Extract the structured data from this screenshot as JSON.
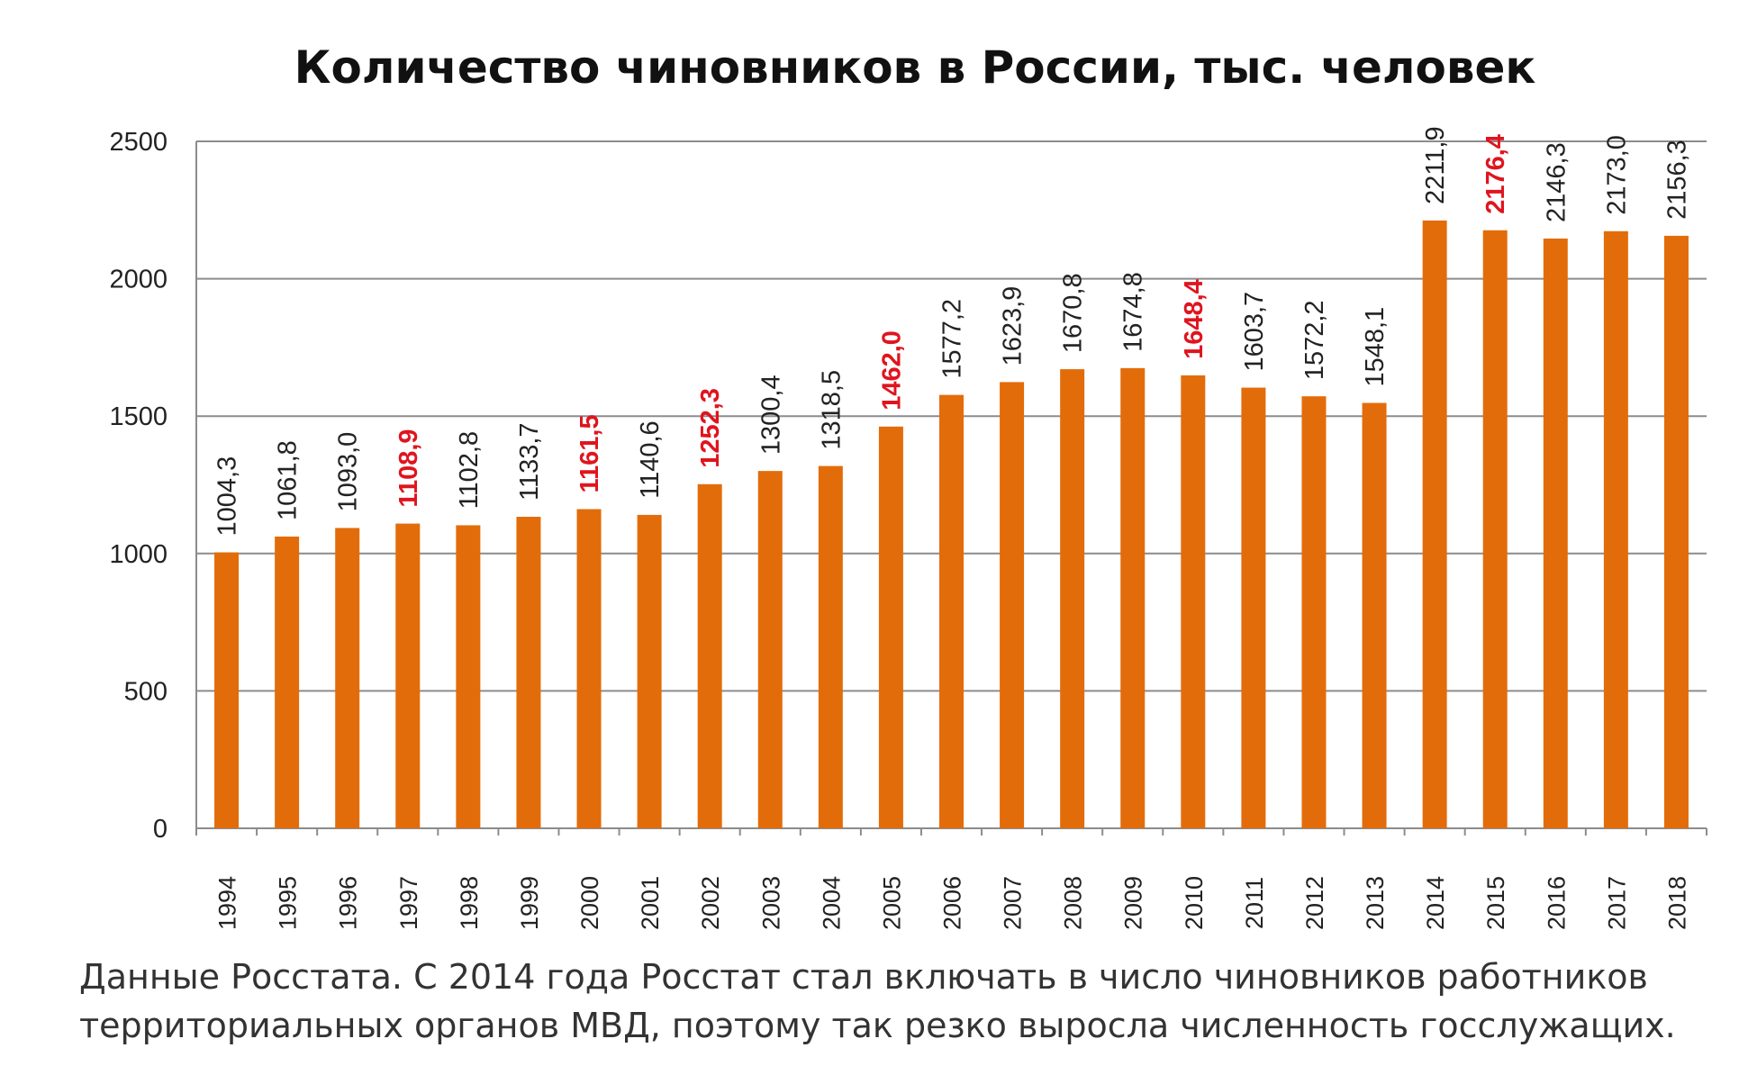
{
  "chart_data": {
    "type": "bar",
    "title": "Количество чиновников в России, тыс. человек",
    "categories": [
      "1994",
      "1995",
      "1996",
      "1997",
      "1998",
      "1999",
      "2000",
      "2001",
      "2002",
      "2003",
      "2004",
      "2005",
      "2006",
      "2007",
      "2008",
      "2009",
      "2010",
      "2011",
      "2012",
      "2013",
      "2014",
      "2015",
      "2016",
      "2017",
      "2018"
    ],
    "values": [
      1004.3,
      1061.8,
      1093.0,
      1108.9,
      1102.8,
      1133.7,
      1161.5,
      1140.6,
      1252.3,
      1300.4,
      1318.5,
      1462.0,
      1577.2,
      1623.9,
      1670.8,
      1674.8,
      1648.4,
      1603.7,
      1572.2,
      1548.1,
      2211.9,
      2176.4,
      2146.3,
      2173.0,
      2156.3
    ],
    "value_labels": [
      "1004,3",
      "1061,8",
      "1093,0",
      "1108,9",
      "1102,8",
      "1133,7",
      "1161,5",
      "1140,6",
      "1252,3",
      "1300,4",
      "1318,5",
      "1462,0",
      "1577,2",
      "1623,9",
      "1670,8",
      "1674,8",
      "1648,4",
      "1603,7",
      "1572,2",
      "1548,1",
      "2211,9",
      "2176,4",
      "2146,3",
      "2173,0",
      "2156,3"
    ],
    "highlighted": [
      "1997",
      "2000",
      "2002",
      "2005",
      "2010",
      "2015"
    ],
    "y_ticks": [
      0,
      500,
      1000,
      1500,
      2000,
      2500
    ],
    "ylim": [
      0,
      2500
    ],
    "grid": true,
    "legend": "none",
    "bar_color": "#e36c0a",
    "highlight_label_color": "#e0141e"
  },
  "caption": {
    "line1": "Данные Росстата. С 2014 года Росстат стал включать в число чиновников работников",
    "line2": "территориальных органов МВД, поэтому так резко выросла численность госслужащих."
  }
}
